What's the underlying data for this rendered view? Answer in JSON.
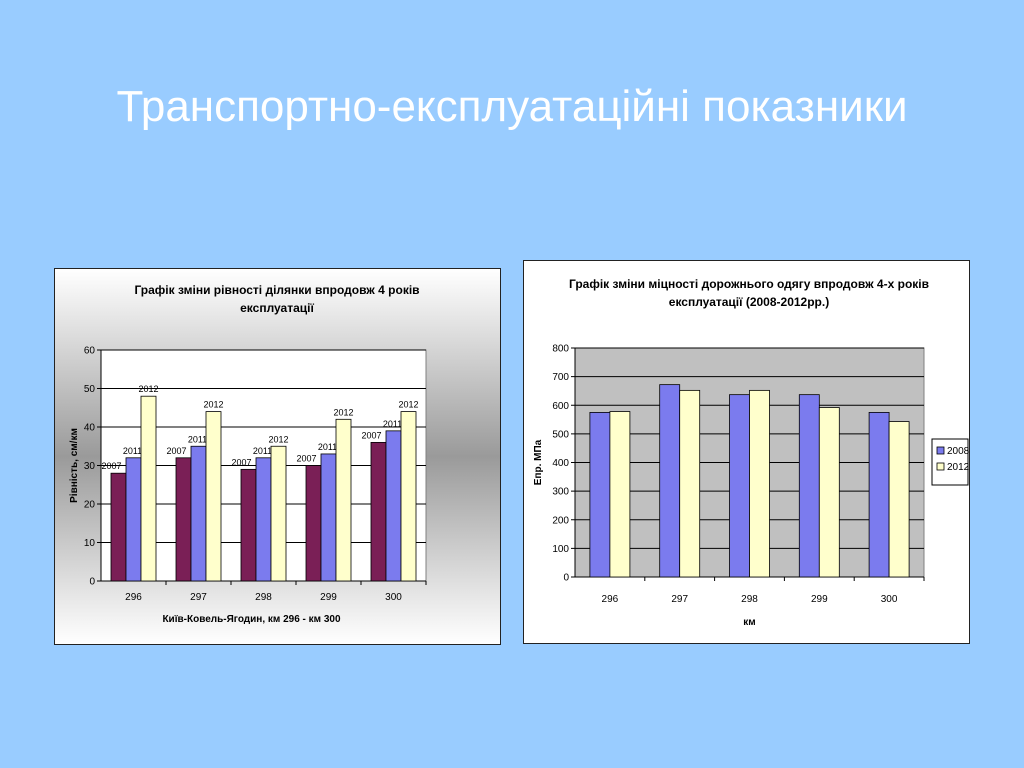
{
  "slide": {
    "title": "Транспортно-експлуатаційні показники"
  },
  "chart_data": [
    {
      "type": "bar",
      "title_lines": [
        "Графік зміни рівності ділянки впродовж 4 років",
        "експлуатації"
      ],
      "xlabel": "Київ-Ковель-Ягодин, км 296 - км 300",
      "ylabel": "Рівність, см/км",
      "categories": [
        "296",
        "297",
        "298",
        "299",
        "300"
      ],
      "ylim": [
        0,
        60
      ],
      "yticks": [
        0,
        10,
        20,
        30,
        40,
        50,
        60
      ],
      "grid": true,
      "legend": "none",
      "series": [
        {
          "name": "2007",
          "values": [
            28,
            32,
            29,
            30,
            36
          ],
          "color": "#7a1f56"
        },
        {
          "name": "2011",
          "values": [
            32,
            35,
            32,
            33,
            39
          ],
          "color": "#7b7bee"
        },
        {
          "name": "2012",
          "values": [
            48,
            44,
            35,
            42,
            44
          ],
          "color": "#ffffcc"
        }
      ]
    },
    {
      "type": "bar",
      "title_lines": [
        "Графік зміни міцності дорожнього одягу впродовж 4-х років",
        "експлуатації (2008-2012рр.)"
      ],
      "xlabel": "км",
      "ylabel": "Епр. МПа",
      "categories": [
        "296",
        "297",
        "298",
        "299",
        "300"
      ],
      "ylim": [
        0,
        800
      ],
      "yticks": [
        0,
        100,
        200,
        300,
        400,
        500,
        600,
        700,
        800
      ],
      "grid": true,
      "legend": "right",
      "series": [
        {
          "name": "2008",
          "values": [
            575,
            672,
            637,
            637,
            575
          ],
          "color": "#7b7bee"
        },
        {
          "name": "2012",
          "values": [
            578,
            652,
            652,
            592,
            543
          ],
          "color": "#ffffcc"
        }
      ]
    }
  ]
}
